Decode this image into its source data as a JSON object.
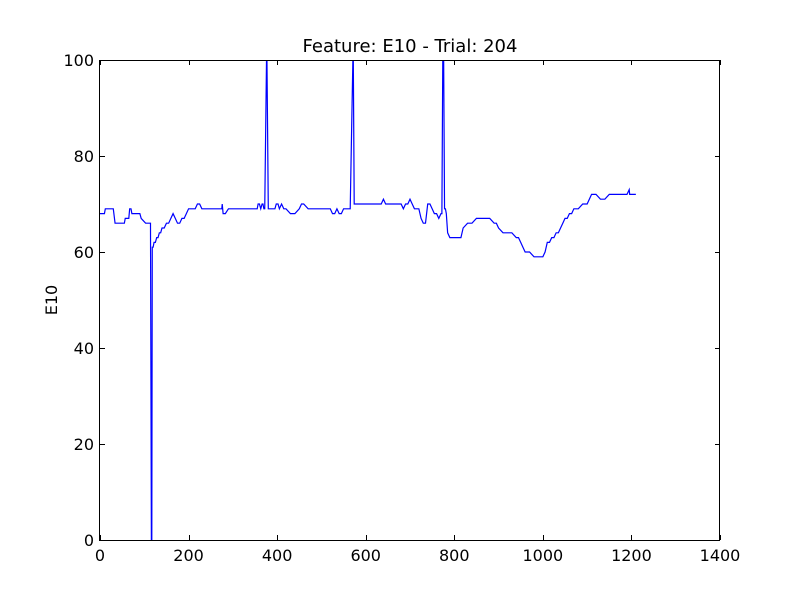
{
  "chart_data": {
    "type": "line",
    "title": "Feature: E10 - Trial: 204",
    "xlabel": "",
    "ylabel": "E10",
    "xlim": [
      0,
      1400
    ],
    "ylim": [
      0,
      100
    ],
    "xticks": [
      0,
      200,
      400,
      600,
      800,
      1000,
      1200,
      1400
    ],
    "yticks": [
      0,
      20,
      40,
      60,
      80,
      100
    ],
    "grid": false,
    "legend": "none",
    "series": [
      {
        "color": "#0000ff",
        "x": [
          0,
          10,
          12,
          30,
          34,
          55,
          57,
          65,
          67,
          70,
          72,
          90,
          93,
          103,
          105,
          114,
          116,
          117,
          118,
          120,
          122,
          125,
          128,
          131,
          134,
          137,
          140,
          145,
          150,
          155,
          160,
          165,
          170,
          175,
          180,
          185,
          190,
          195,
          200,
          205,
          210,
          215,
          220,
          225,
          230,
          235,
          240,
          245,
          250,
          260,
          270,
          275,
          276,
          278,
          280,
          283,
          290,
          300,
          320,
          340,
          355,
          357,
          360,
          363,
          366,
          368,
          370,
          372,
          376,
          377,
          380,
          382,
          385,
          395,
          398,
          402,
          405,
          410,
          415,
          420,
          430,
          440,
          450,
          455,
          460,
          470,
          480,
          500,
          520,
          525,
          530,
          535,
          540,
          545,
          550,
          560,
          565,
          571,
          572,
          574,
          576,
          580,
          600,
          620,
          635,
          640,
          645,
          650,
          660,
          670,
          675,
          680,
          685,
          690,
          695,
          700,
          705,
          710,
          715,
          720,
          725,
          730,
          735,
          740,
          745,
          750,
          755,
          760,
          765,
          770,
          772,
          774,
          776,
          778,
          780,
          782,
          785,
          790,
          800,
          815,
          820,
          830,
          840,
          850,
          860,
          870,
          880,
          890,
          895,
          900,
          910,
          920,
          930,
          940,
          945,
          950,
          955,
          960,
          965,
          970,
          980,
          990,
          1000,
          1005,
          1010,
          1015,
          1020,
          1025,
          1030,
          1035,
          1040,
          1045,
          1050,
          1055,
          1060,
          1065,
          1070,
          1080,
          1090,
          1100,
          1110,
          1120,
          1130,
          1140,
          1150,
          1160,
          1170,
          1180,
          1190,
          1195,
          1196,
          1200,
          1210
        ],
        "y": [
          68,
          68,
          69,
          69,
          66,
          66,
          67,
          67,
          69,
          69,
          68,
          68,
          67,
          66,
          66,
          66,
          0,
          0,
          61,
          61,
          62,
          62,
          63,
          63,
          64,
          64,
          65,
          65,
          66,
          66,
          67,
          68,
          67,
          66,
          66,
          67,
          67,
          68,
          69,
          69,
          69,
          69,
          70,
          70,
          69,
          69,
          69,
          69,
          69,
          69,
          69,
          69,
          70,
          68,
          68,
          68,
          69,
          69,
          69,
          69,
          69,
          70,
          70,
          69,
          70,
          70,
          69,
          69,
          100,
          100,
          69,
          69,
          69,
          69,
          70,
          70,
          69,
          70,
          69,
          69,
          68,
          68,
          69,
          70,
          70,
          69,
          69,
          69,
          69,
          68,
          68,
          69,
          68,
          68,
          69,
          69,
          69,
          100,
          100,
          70,
          70,
          70,
          70,
          70,
          70,
          71,
          70,
          70,
          70,
          70,
          70,
          70,
          69,
          70,
          70,
          71,
          70,
          69,
          69,
          69,
          67,
          66,
          66,
          70,
          70,
          69,
          68,
          68,
          67,
          68,
          68,
          100,
          100,
          69,
          69,
          68,
          64,
          63,
          63,
          63,
          65,
          66,
          66,
          67,
          67,
          67,
          67,
          66,
          66,
          65,
          64,
          64,
          64,
          63,
          63,
          62,
          61,
          60,
          60,
          60,
          59,
          59,
          59,
          60,
          62,
          62,
          63,
          63,
          64,
          64,
          65,
          66,
          67,
          67,
          68,
          68,
          69,
          69,
          70,
          70,
          72,
          72,
          71,
          71,
          72,
          72,
          72,
          72,
          72,
          73,
          72,
          72,
          72
        ]
      }
    ]
  }
}
